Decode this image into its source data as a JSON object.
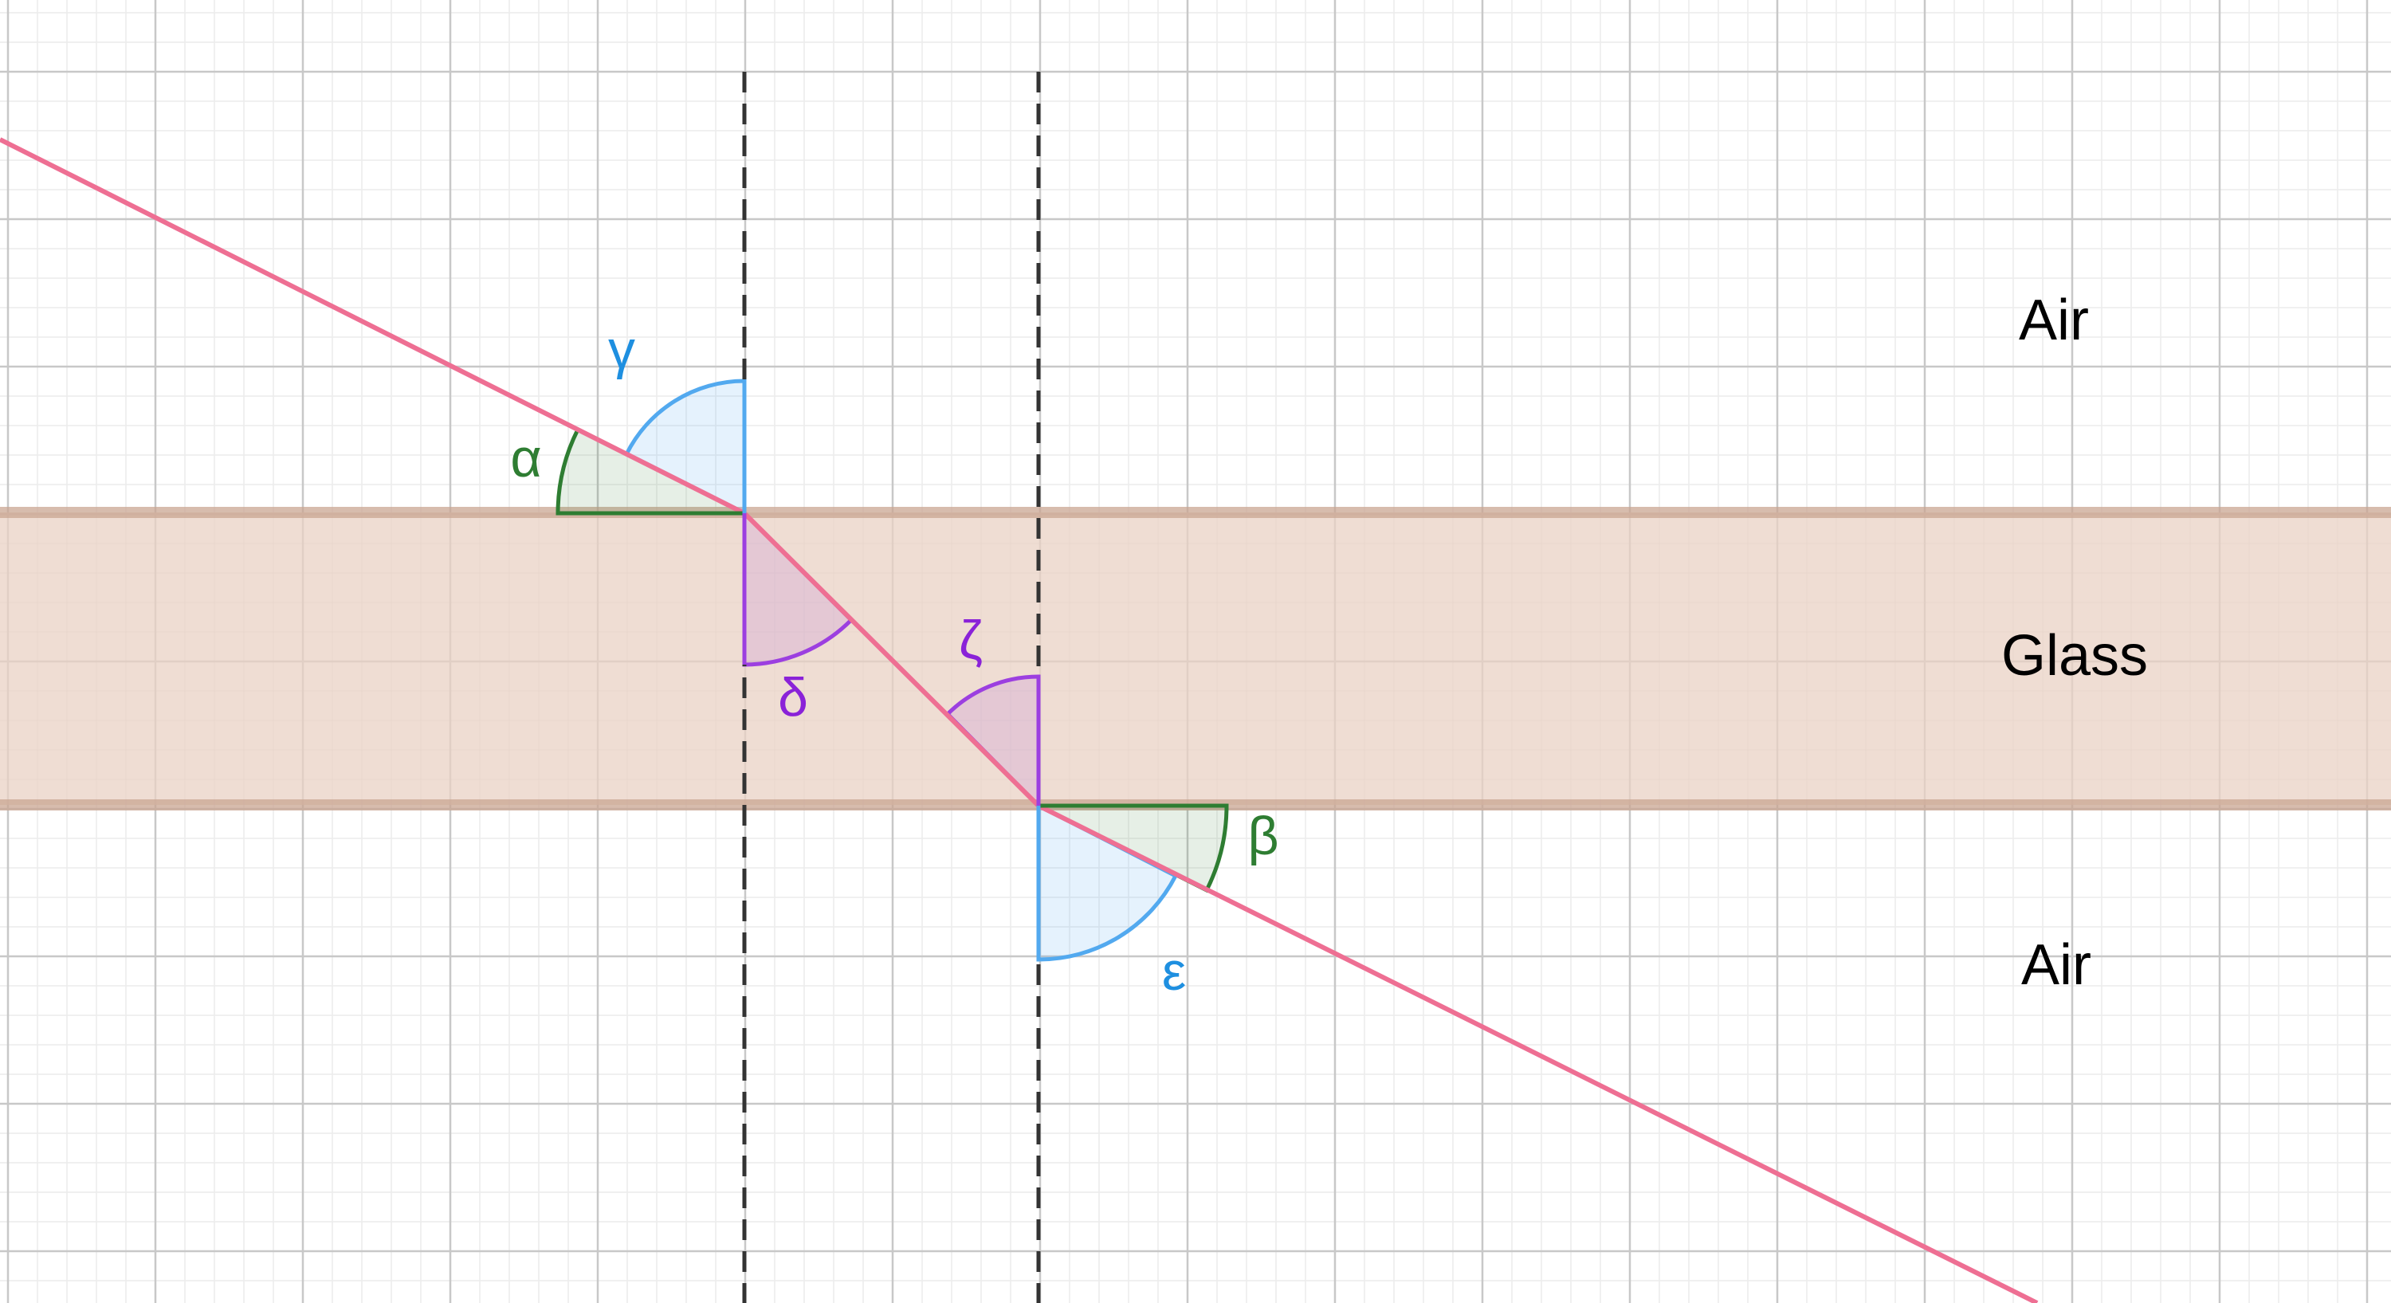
{
  "medium_labels": {
    "top": "Air",
    "middle": "Glass",
    "bottom": "Air"
  },
  "angle_labels": {
    "alpha": "α",
    "gamma": "γ",
    "delta": "δ",
    "zeta": "ζ",
    "beta": "β",
    "epsilon": "ε"
  },
  "colors": {
    "ray": "#ee6f93",
    "glass_fill": "#e9d1c4",
    "glass_border": "#c9a592",
    "green_angle": "#2e7d32",
    "blue_angle": "#52a9ef",
    "purple_angle": "#9c3fe0",
    "normal_line": "#333333",
    "grid_major": "#c8c8c8",
    "grid_minor": "#ececec"
  }
}
